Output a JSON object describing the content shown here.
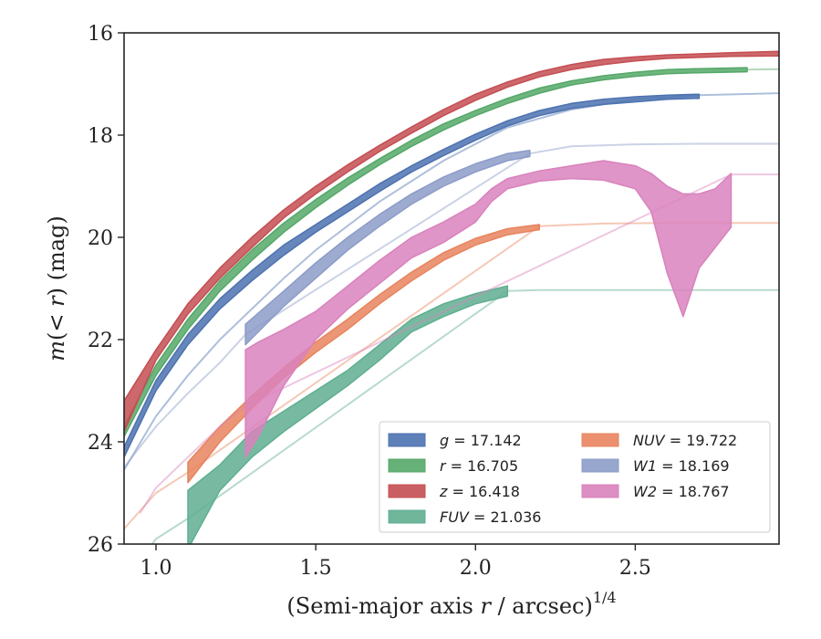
{
  "chart_data": {
    "type": "area",
    "xlabel": "(Semi-major axis r / arcsec)^1/4",
    "ylabel": "m(< r) (mag)",
    "xlim": [
      0.9,
      2.95
    ],
    "ylim": [
      26,
      16
    ],
    "y_inverted": true,
    "xticks": [
      "1.0",
      "1.5",
      "2.0",
      "2.5"
    ],
    "xtick_values": [
      1.0,
      1.5,
      2.0,
      2.5
    ],
    "yticks": [
      "16",
      "18",
      "20",
      "22",
      "24",
      "26"
    ],
    "ytick_values": [
      16,
      18,
      20,
      22,
      24,
      26
    ],
    "grid": false,
    "legend_position": "lower-right",
    "legend_columns": 2,
    "series": [
      {
        "name": "g = 17.142",
        "label_var": "g",
        "label_val": "17.142",
        "color": "#4c72b0",
        "band": [
          [
            0.9,
            24.3,
            24.1
          ],
          [
            1.0,
            23.0,
            22.8
          ],
          [
            1.1,
            22.1,
            21.9
          ],
          [
            1.2,
            21.4,
            21.2
          ],
          [
            1.3,
            20.85,
            20.65
          ],
          [
            1.4,
            20.35,
            20.15
          ],
          [
            1.5,
            19.9,
            19.75
          ],
          [
            1.6,
            19.5,
            19.35
          ],
          [
            1.7,
            19.1,
            18.95
          ],
          [
            1.8,
            18.72,
            18.6
          ],
          [
            1.9,
            18.4,
            18.28
          ],
          [
            2.0,
            18.1,
            17.98
          ],
          [
            2.1,
            17.82,
            17.72
          ],
          [
            2.2,
            17.62,
            17.52
          ],
          [
            2.3,
            17.48,
            17.38
          ],
          [
            2.4,
            17.4,
            17.3
          ],
          [
            2.5,
            17.35,
            17.25
          ],
          [
            2.6,
            17.3,
            17.22
          ],
          [
            2.7,
            17.28,
            17.2
          ]
        ],
        "extension": [
          [
            0.9,
            24.55
          ],
          [
            1.0,
            23.5
          ],
          [
            1.1,
            22.7
          ],
          [
            1.2,
            22.0
          ],
          [
            1.3,
            21.4
          ],
          [
            1.4,
            20.8
          ],
          [
            1.5,
            20.25
          ],
          [
            1.7,
            19.3
          ],
          [
            1.9,
            18.5
          ],
          [
            2.1,
            17.85
          ],
          [
            2.3,
            17.5
          ],
          [
            2.5,
            17.3
          ],
          [
            2.7,
            17.22
          ],
          [
            2.95,
            17.18
          ]
        ]
      },
      {
        "name": "r = 16.705",
        "label_var": "r",
        "label_val": "16.705",
        "color": "#55a868",
        "band": [
          [
            0.9,
            23.9,
            23.7
          ],
          [
            1.0,
            22.7,
            22.5
          ],
          [
            1.1,
            21.8,
            21.6
          ],
          [
            1.2,
            21.05,
            20.85
          ],
          [
            1.3,
            20.45,
            20.25
          ],
          [
            1.4,
            19.9,
            19.72
          ],
          [
            1.5,
            19.42,
            19.26
          ],
          [
            1.6,
            18.98,
            18.84
          ],
          [
            1.7,
            18.58,
            18.46
          ],
          [
            1.8,
            18.22,
            18.1
          ],
          [
            1.9,
            17.9,
            17.78
          ],
          [
            2.0,
            17.62,
            17.52
          ],
          [
            2.1,
            17.38,
            17.28
          ],
          [
            2.2,
            17.18,
            17.08
          ],
          [
            2.3,
            17.02,
            16.94
          ],
          [
            2.4,
            16.92,
            16.84
          ],
          [
            2.5,
            16.85,
            16.77
          ],
          [
            2.6,
            16.8,
            16.72
          ],
          [
            2.7,
            16.78,
            16.7
          ],
          [
            2.85,
            16.76,
            16.68
          ]
        ],
        "extension": [
          [
            2.85,
            16.72
          ],
          [
            2.95,
            16.71
          ]
        ]
      },
      {
        "name": "z = 16.418",
        "label_var": "z",
        "label_val": "16.418",
        "color": "#c44e52",
        "band": [
          [
            0.9,
            23.8,
            23.2
          ],
          [
            1.0,
            22.4,
            22.2
          ],
          [
            1.1,
            21.5,
            21.3
          ],
          [
            1.2,
            20.8,
            20.6
          ],
          [
            1.3,
            20.2,
            20.0
          ],
          [
            1.4,
            19.62,
            19.46
          ],
          [
            1.5,
            19.15,
            19.0
          ],
          [
            1.6,
            18.72,
            18.58
          ],
          [
            1.7,
            18.32,
            18.2
          ],
          [
            1.8,
            17.96,
            17.84
          ],
          [
            1.9,
            17.62,
            17.5
          ],
          [
            2.0,
            17.32,
            17.2
          ],
          [
            2.1,
            17.06,
            16.96
          ],
          [
            2.2,
            16.86,
            16.76
          ],
          [
            2.3,
            16.72,
            16.62
          ],
          [
            2.4,
            16.62,
            16.52
          ],
          [
            2.5,
            16.55,
            16.47
          ],
          [
            2.6,
            16.5,
            16.43
          ],
          [
            2.7,
            16.48,
            16.41
          ],
          [
            2.8,
            16.46,
            16.39
          ],
          [
            2.95,
            16.45,
            16.36
          ]
        ],
        "extension": []
      },
      {
        "name": "FUV = 21.036",
        "label_var": "FUV",
        "label_val": "21.036",
        "color": "#5fae90",
        "band": [
          [
            1.1,
            26.1,
            24.95
          ],
          [
            1.2,
            24.95,
            24.45
          ],
          [
            1.3,
            24.3,
            23.8
          ],
          [
            1.4,
            23.8,
            23.4
          ],
          [
            1.5,
            23.35,
            23.0
          ],
          [
            1.6,
            22.9,
            22.6
          ],
          [
            1.7,
            22.4,
            22.1
          ],
          [
            1.8,
            21.85,
            21.6
          ],
          [
            1.9,
            21.55,
            21.3
          ],
          [
            2.0,
            21.3,
            21.1
          ],
          [
            2.1,
            21.15,
            20.95
          ]
        ],
        "extension": [
          [
            0.95,
            26.3
          ],
          [
            1.0,
            25.9
          ],
          [
            1.1,
            25.5
          ],
          [
            2.1,
            21.05
          ],
          [
            2.2,
            21.03
          ],
          [
            2.4,
            21.03
          ],
          [
            2.95,
            21.03
          ]
        ]
      },
      {
        "name": "NUV = 19.722",
        "label_var": "NUV",
        "label_val": "19.722",
        "color": "#e8845e",
        "band": [
          [
            1.1,
            24.8,
            24.4
          ],
          [
            1.2,
            24.0,
            23.7
          ],
          [
            1.3,
            23.35,
            23.1
          ],
          [
            1.4,
            22.75,
            22.55
          ],
          [
            1.5,
            22.25,
            22.05
          ],
          [
            1.6,
            21.8,
            21.6
          ],
          [
            1.7,
            21.3,
            21.12
          ],
          [
            1.8,
            20.85,
            20.68
          ],
          [
            1.9,
            20.45,
            20.3
          ],
          [
            2.0,
            20.15,
            20.02
          ],
          [
            2.1,
            19.95,
            19.83
          ],
          [
            2.2,
            19.85,
            19.75
          ]
        ],
        "extension": [
          [
            0.9,
            25.7
          ],
          [
            1.0,
            25.0
          ],
          [
            1.1,
            24.6
          ],
          [
            2.2,
            19.78
          ],
          [
            2.4,
            19.73
          ],
          [
            2.6,
            19.72
          ],
          [
            2.95,
            19.72
          ]
        ]
      },
      {
        "name": "W1 = 18.169",
        "label_var": "W1",
        "label_val": "18.169",
        "color": "#8c9cc8",
        "band": [
          [
            1.28,
            22.1,
            21.7
          ],
          [
            1.4,
            21.35,
            21.05
          ],
          [
            1.5,
            20.8,
            20.5
          ],
          [
            1.6,
            20.25,
            20.0
          ],
          [
            1.7,
            19.78,
            19.55
          ],
          [
            1.8,
            19.35,
            19.15
          ],
          [
            1.9,
            19.0,
            18.82
          ],
          [
            2.0,
            18.72,
            18.56
          ],
          [
            2.1,
            18.5,
            18.36
          ],
          [
            2.17,
            18.42,
            18.3
          ]
        ],
        "extension": [
          [
            0.9,
            24.5
          ],
          [
            1.0,
            23.7
          ],
          [
            1.1,
            23.05
          ],
          [
            1.2,
            22.45
          ],
          [
            1.28,
            21.9
          ],
          [
            2.17,
            18.36
          ],
          [
            2.3,
            18.22
          ],
          [
            2.5,
            18.18
          ],
          [
            2.7,
            18.17
          ],
          [
            2.95,
            18.17
          ]
        ]
      },
      {
        "name": "W2 = 18.767",
        "label_var": "W2",
        "label_val": "18.767",
        "color": "#d982bd",
        "band": [
          [
            1.28,
            24.3,
            22.2
          ],
          [
            1.32,
            23.9,
            22.05
          ],
          [
            1.4,
            22.9,
            21.8
          ],
          [
            1.5,
            22.0,
            21.45
          ],
          [
            1.6,
            21.4,
            20.95
          ],
          [
            1.7,
            20.9,
            20.45
          ],
          [
            1.8,
            20.4,
            20.0
          ],
          [
            1.9,
            20.1,
            19.7
          ],
          [
            2.0,
            19.7,
            19.35
          ],
          [
            2.05,
            19.3,
            19.05
          ],
          [
            2.1,
            19.05,
            18.85
          ],
          [
            2.2,
            18.9,
            18.7
          ],
          [
            2.3,
            18.85,
            18.6
          ],
          [
            2.4,
            18.88,
            18.5
          ],
          [
            2.5,
            19.05,
            18.6
          ],
          [
            2.55,
            19.5,
            18.75
          ],
          [
            2.6,
            20.7,
            19.0
          ],
          [
            2.65,
            21.55,
            19.15
          ],
          [
            2.7,
            20.6,
            19.15
          ],
          [
            2.75,
            20.2,
            19.05
          ],
          [
            2.8,
            19.8,
            18.75
          ]
        ],
        "extension": [
          [
            0.95,
            25.4
          ],
          [
            1.0,
            24.9
          ],
          [
            1.1,
            24.3
          ],
          [
            1.2,
            23.7
          ],
          [
            1.28,
            23.3
          ],
          [
            2.8,
            18.77
          ],
          [
            2.95,
            18.77
          ]
        ]
      }
    ]
  }
}
